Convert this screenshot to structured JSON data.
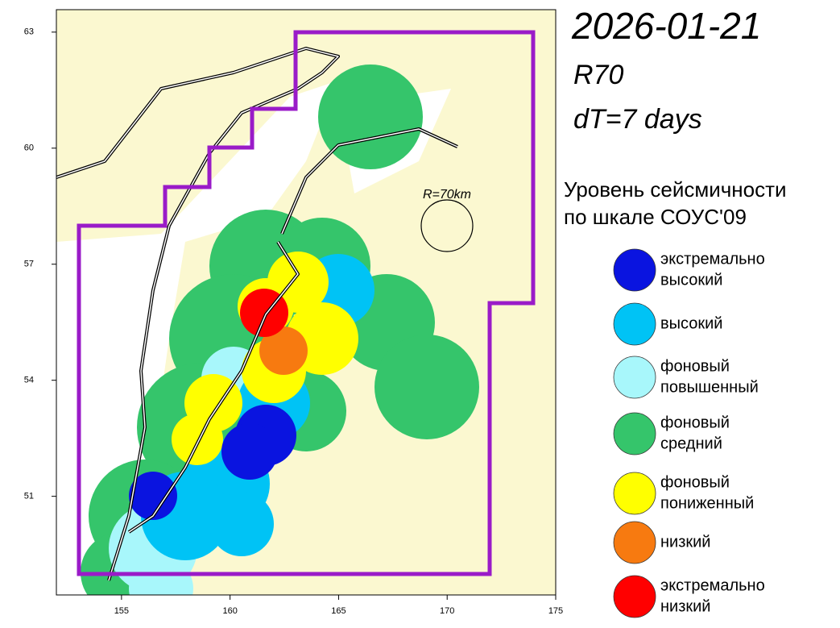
{
  "title": "2026-01-21",
  "subtitle": "R70",
  "window": "dT=7 days",
  "map": {
    "xlim": [
      152,
      175
    ],
    "ylim": [
      48.45,
      63.58
    ],
    "xticks": [
      155,
      160,
      165,
      170,
      175
    ],
    "yticks": [
      51,
      54,
      57,
      60,
      63
    ],
    "circle_label": "R=70km"
  },
  "legend": {
    "title": [
      "Уровень сейсмичности",
      "по шкале СОУС'09"
    ],
    "items": [
      {
        "label": [
          "экстремально",
          "высокий"
        ],
        "color": "#0a14e0"
      },
      {
        "label": [
          "высокий"
        ],
        "color": "#00c3f5"
      },
      {
        "label": [
          "фоновый",
          "повышенный"
        ],
        "color": "#a8f7fb"
      },
      {
        "label": [
          "фоновый",
          "средний"
        ],
        "color": "#35c56b"
      },
      {
        "label": [
          "фоновый",
          "пониженный"
        ],
        "color": "#ffff00"
      },
      {
        "label": [
          "низкий"
        ],
        "color": "#f77a10"
      },
      {
        "label": [
          "экстремально",
          "низкий"
        ],
        "color": "#ff0000"
      }
    ]
  }
}
